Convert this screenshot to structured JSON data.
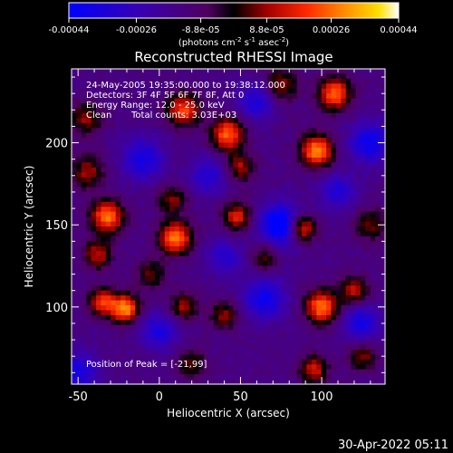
{
  "colorbar": {
    "ticks": [
      "-0.00044",
      "-0.00026",
      "-8.8e-05",
      "8.8e-05",
      "0.00026",
      "0.00044"
    ],
    "tick_values": [
      -0.00044,
      -0.00026,
      -8.8e-05,
      8.8e-05,
      0.00026,
      0.00044
    ],
    "unit_main": "(photons cm",
    "unit_exp1": "-2",
    "unit_mid": " s",
    "unit_exp2": "-1",
    "unit_end1": " asec",
    "unit_exp3": "-2",
    "unit_close": ")"
  },
  "chart_data": {
    "type": "heatmap",
    "title": "Reconstructed RHESSI Image",
    "xlabel": "Heliocentric X (arcsec)",
    "ylabel": "Heliocentric Y (arcsec)",
    "xlim": [
      -54,
      139
    ],
    "ylim": [
      53,
      245
    ],
    "x_ticks": [
      -50,
      0,
      50,
      100
    ],
    "y_ticks": [
      100,
      150,
      200
    ],
    "annotations": [
      "24-May-2005 19:35:00.000 to 19:38:12.000",
      "Detectors: 3F 4F 5F 6F 7F 8F, Att 0",
      "Energy Range: 12.0 - 25.0 keV",
      "Clean",
      "Total counts: 3.03E+03",
      "Position of Peak = [-21,99]"
    ],
    "peak": [
      -21,
      99
    ],
    "value_range": [
      -0.00044,
      0.00044
    ],
    "sources": [
      {
        "x": -21,
        "y": 99,
        "amp": 1.0,
        "s": 6
      },
      {
        "x": -35,
        "y": 103,
        "amp": 0.75,
        "s": 6
      },
      {
        "x": -32,
        "y": 155,
        "amp": 0.95,
        "s": 7
      },
      {
        "x": -38,
        "y": 132,
        "amp": 0.6,
        "s": 6
      },
      {
        "x": -44,
        "y": 182,
        "amp": 0.55,
        "s": 7
      },
      {
        "x": -45,
        "y": 215,
        "amp": 0.5,
        "s": 7
      },
      {
        "x": 10,
        "y": 142,
        "amp": 0.95,
        "s": 7
      },
      {
        "x": 8,
        "y": 165,
        "amp": 0.5,
        "s": 6
      },
      {
        "x": 42,
        "y": 205,
        "amp": 0.9,
        "s": 7
      },
      {
        "x": 50,
        "y": 185,
        "amp": 0.55,
        "s": 6
      },
      {
        "x": 15,
        "y": 220,
        "amp": 0.8,
        "s": 7
      },
      {
        "x": 97,
        "y": 195,
        "amp": 1.0,
        "s": 7
      },
      {
        "x": 108,
        "y": 230,
        "amp": 0.9,
        "s": 7
      },
      {
        "x": 88,
        "y": 148,
        "amp": 0.85,
        "s": 6
      },
      {
        "x": 48,
        "y": 155,
        "amp": 0.7,
        "s": 6
      },
      {
        "x": 75,
        "y": 235,
        "amp": 0.55,
        "s": 7
      },
      {
        "x": 100,
        "y": 100,
        "amp": 0.95,
        "s": 7
      },
      {
        "x": 120,
        "y": 110,
        "amp": 0.6,
        "s": 6
      },
      {
        "x": 15,
        "y": 100,
        "amp": 0.55,
        "s": 6
      },
      {
        "x": 40,
        "y": 95,
        "amp": 0.5,
        "s": 6
      },
      {
        "x": 95,
        "y": 62,
        "amp": 0.65,
        "s": 6
      },
      {
        "x": 125,
        "y": 70,
        "amp": 0.5,
        "s": 6
      },
      {
        "x": 20,
        "y": 65,
        "amp": 0.45,
        "s": 6
      },
      {
        "x": -5,
        "y": 120,
        "amp": 0.45,
        "s": 6
      },
      {
        "x": 130,
        "y": 150,
        "amp": 0.45,
        "s": 7
      },
      {
        "x": 65,
        "y": 130,
        "amp": 0.4,
        "s": 6
      },
      {
        "x": 75,
        "y": 150,
        "amp": -0.85,
        "s": 9
      },
      {
        "x": 65,
        "y": 105,
        "amp": -0.6,
        "s": 9
      },
      {
        "x": 130,
        "y": 200,
        "amp": -0.6,
        "s": 9
      },
      {
        "x": 60,
        "y": 225,
        "amp": -0.5,
        "s": 8
      },
      {
        "x": -10,
        "y": 190,
        "amp": -0.55,
        "s": 9
      },
      {
        "x": -50,
        "y": 60,
        "amp": -0.5,
        "s": 9
      },
      {
        "x": 125,
        "y": 90,
        "amp": -0.55,
        "s": 8
      },
      {
        "x": 110,
        "y": 170,
        "amp": -0.45,
        "s": 8
      },
      {
        "x": 0,
        "y": 85,
        "amp": -0.5,
        "s": 8
      },
      {
        "x": 30,
        "y": 180,
        "amp": -0.45,
        "s": 8
      },
      {
        "x": 40,
        "y": 130,
        "amp": -0.4,
        "s": 8
      }
    ]
  },
  "footer": {
    "timestamp": "30-Apr-2022 05:11"
  }
}
